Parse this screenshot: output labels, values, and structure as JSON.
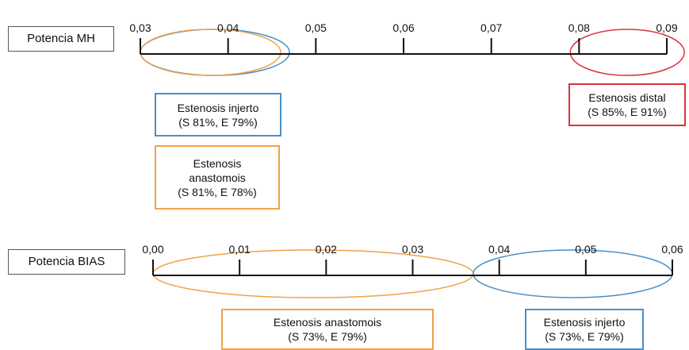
{
  "colors": {
    "axis": "#111111",
    "blue": "#4a8fc9",
    "orange": "#f0a24a",
    "red": "#d8343f",
    "label_border": "#555555"
  },
  "rows": [
    {
      "label": "Potencia MH",
      "ticks": [
        "0,03",
        "0,04",
        "0,05",
        "0,06",
        "0,07",
        "0,08",
        "0,09"
      ],
      "tick_values": [
        0.03,
        0.04,
        0.05,
        0.06,
        0.07,
        0.08,
        0.09
      ],
      "ellipses": [
        {
          "color": "blue",
          "from": 0.03,
          "to": 0.047
        },
        {
          "color": "orange",
          "from": 0.03,
          "to": 0.046
        },
        {
          "color": "red",
          "from": 0.079,
          "to": 0.092
        }
      ],
      "boxes": [
        {
          "color": "blue",
          "lines": [
            "Estenosis injerto",
            "(S 81%, E 79%)"
          ]
        },
        {
          "color": "orange",
          "lines": [
            "Estenosis",
            "anastomois",
            "(S 81%, E 78%)"
          ]
        },
        {
          "color": "red",
          "lines": [
            "Estenosis distal",
            "(S 85%, E 91%)"
          ]
        }
      ]
    },
    {
      "label": "Potencia BIAS",
      "ticks": [
        "0,00",
        "0,01",
        "0,02",
        "0,03",
        "0,04",
        "0,05",
        "0,06"
      ],
      "tick_values": [
        0.0,
        0.01,
        0.02,
        0.03,
        0.04,
        0.05,
        0.06
      ],
      "ellipses": [
        {
          "color": "orange",
          "from": 0.0,
          "to": 0.037
        },
        {
          "color": "blue",
          "from": 0.037,
          "to": 0.06
        }
      ],
      "boxes": [
        {
          "color": "orange",
          "lines": [
            "Estenosis anastomois",
            "(S 73%, E 79%)"
          ]
        },
        {
          "color": "blue",
          "lines": [
            "Estenosis injerto",
            "(S 73%, E 79%)"
          ]
        }
      ]
    }
  ]
}
